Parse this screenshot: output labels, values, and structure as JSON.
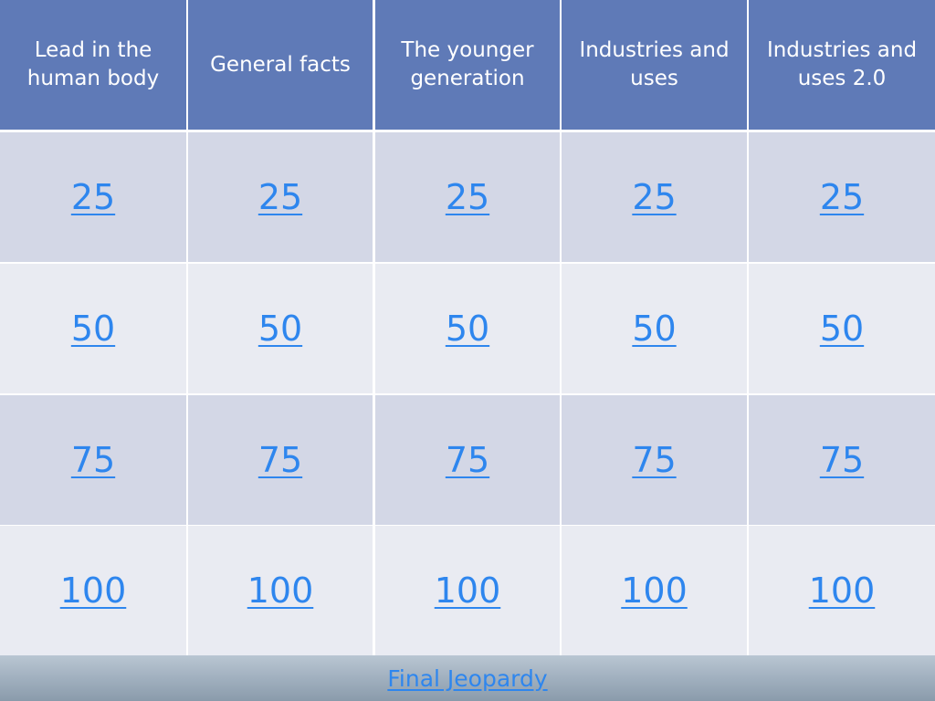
{
  "board": {
    "categories": [
      "Lead in the human body",
      "General facts",
      "The younger generation",
      "Industries and uses",
      "Industries and uses 2.0"
    ],
    "rows": [
      {
        "values": [
          "25",
          "25",
          "25",
          "25",
          "25"
        ]
      },
      {
        "values": [
          "50",
          "50",
          "50",
          "50",
          "50"
        ]
      },
      {
        "values": [
          "75",
          "75",
          "75",
          "75",
          "75"
        ]
      },
      {
        "values": [
          "100",
          "100",
          "100",
          "100",
          "100"
        ]
      }
    ]
  },
  "footer": {
    "final_label": "Final Jeopardy"
  },
  "colors": {
    "header_bg": "#5f7ab7",
    "row_dark": "#d3d7e6",
    "row_light": "#e9ebf2",
    "link": "#2e86ee"
  }
}
